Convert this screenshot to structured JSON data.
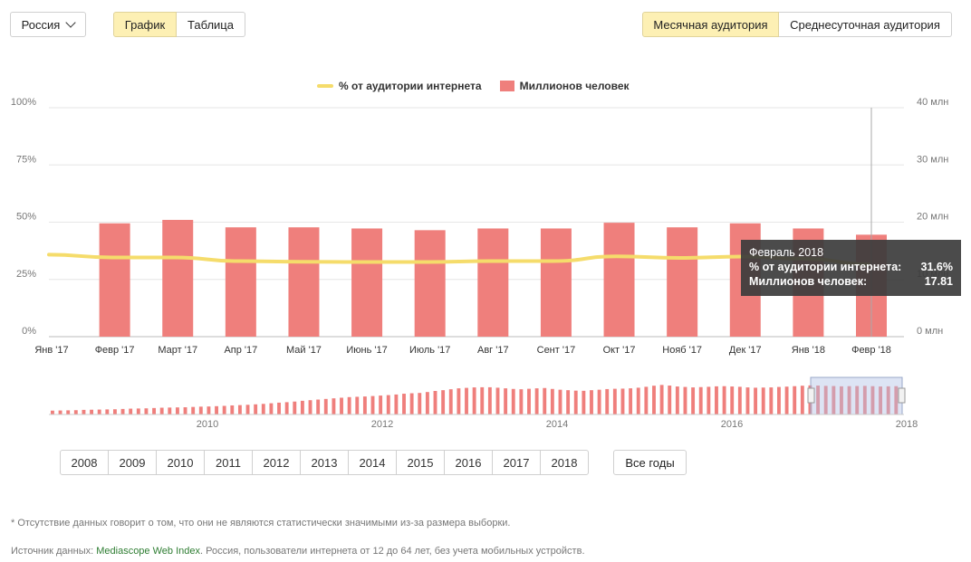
{
  "controls": {
    "region": "Россия",
    "view_tabs": [
      "График",
      "Таблица"
    ],
    "audience_tabs": [
      "Месячная аудитория",
      "Среднесуточная аудитория"
    ]
  },
  "legend": {
    "line_label": "% от аудитории интернета",
    "bar_label": "Миллионов человек"
  },
  "tooltip": {
    "title": "Февраль 2018",
    "row1_label": "% от аудитории интернета:",
    "row1_value": "31.6%",
    "row2_label": "Миллионов человек:",
    "row2_value": "17.81"
  },
  "chart_data": {
    "type": "bar",
    "categories": [
      "Янв '17",
      "Февр '17",
      "Март '17",
      "Апр '17",
      "Май '17",
      "Июнь '17",
      "Июль '17",
      "Авг '17",
      "Сент '17",
      "Окт '17",
      "Нояб '17",
      "Дек '17",
      "Янв '18",
      "Февр '18"
    ],
    "series": [
      {
        "name": "Миллионов человек",
        "axis": "right",
        "type": "bar",
        "values": [
          null,
          19.8,
          20.4,
          19.1,
          19.1,
          18.9,
          18.6,
          18.9,
          18.9,
          19.9,
          19.1,
          19.8,
          18.9,
          17.81
        ]
      },
      {
        "name": "% от аудитории интернета",
        "axis": "left",
        "type": "line",
        "values": [
          35.8,
          34.6,
          34.6,
          33.0,
          32.7,
          32.6,
          32.6,
          33.0,
          33.0,
          35.1,
          34.4,
          35.0,
          34.0,
          31.6
        ]
      }
    ],
    "left_axis": {
      "ticks": [
        "0%",
        "25%",
        "50%",
        "75%",
        "100%"
      ],
      "ylim": [
        0,
        100
      ]
    },
    "right_axis": {
      "ticks": [
        "0 млн",
        "10 млн",
        "20 млн",
        "30 млн",
        "40 млн"
      ],
      "ylim": [
        0,
        40
      ]
    },
    "navigator": {
      "x_labels": [
        "2010",
        "2012",
        "2014",
        "2016",
        "2018"
      ],
      "values": [
        2.5,
        2.6,
        2.7,
        2.8,
        3.0,
        3.1,
        3.2,
        3.3,
        3.4,
        3.6,
        3.8,
        3.9,
        4.0,
        4.2,
        4.4,
        4.5,
        4.6,
        4.7,
        4.9,
        5.1,
        5.2,
        5.4,
        5.6,
        5.9,
        6.1,
        6.3,
        6.6,
        6.9,
        7.3,
        7.7,
        8.0,
        8.4,
        8.9,
        9.3,
        9.7,
        10.1,
        10.5,
        10.9,
        11.3,
        11.5,
        11.7,
        12.0,
        12.3,
        12.6,
        13.0,
        13.5,
        13.8,
        14.0,
        14.6,
        15.3,
        15.8,
        16.4,
        17.0,
        17.3,
        17.6,
        17.7,
        17.7,
        17.4,
        17.0,
        16.6,
        16.4,
        16.7,
        17.0,
        17.2,
        16.6,
        16.1,
        15.8,
        15.5,
        15.4,
        15.8,
        16.1,
        16.5,
        16.7,
        16.8,
        17.0,
        17.4,
        18.0,
        18.7,
        19.2,
        18.8,
        18.2,
        17.9,
        17.6,
        17.8,
        18.0,
        18.3,
        18.4,
        18.2,
        18.0,
        17.6,
        17.4,
        17.5,
        17.6,
        17.9,
        18.1,
        18.4,
        18.7,
        18.9,
        18.8,
        18.6,
        18.5,
        18.3,
        18.4,
        18.5,
        18.6,
        18.4,
        18.2,
        18.3,
        18.4
      ]
    }
  },
  "year_buttons": [
    "2008",
    "2009",
    "2010",
    "2011",
    "2012",
    "2013",
    "2014",
    "2015",
    "2016",
    "2017",
    "2018"
  ],
  "all_years": "Все годы",
  "footnote": "* Отсутствие данных говорит о том, что они не являются статистически значимыми из-за размера выборки.",
  "source": {
    "prefix": "Источник данных: ",
    "link": "Mediascope Web Index",
    "suffix": ". Россия, пользователи интернета от 12 до 64 лет, без учета мобильных устройств."
  }
}
